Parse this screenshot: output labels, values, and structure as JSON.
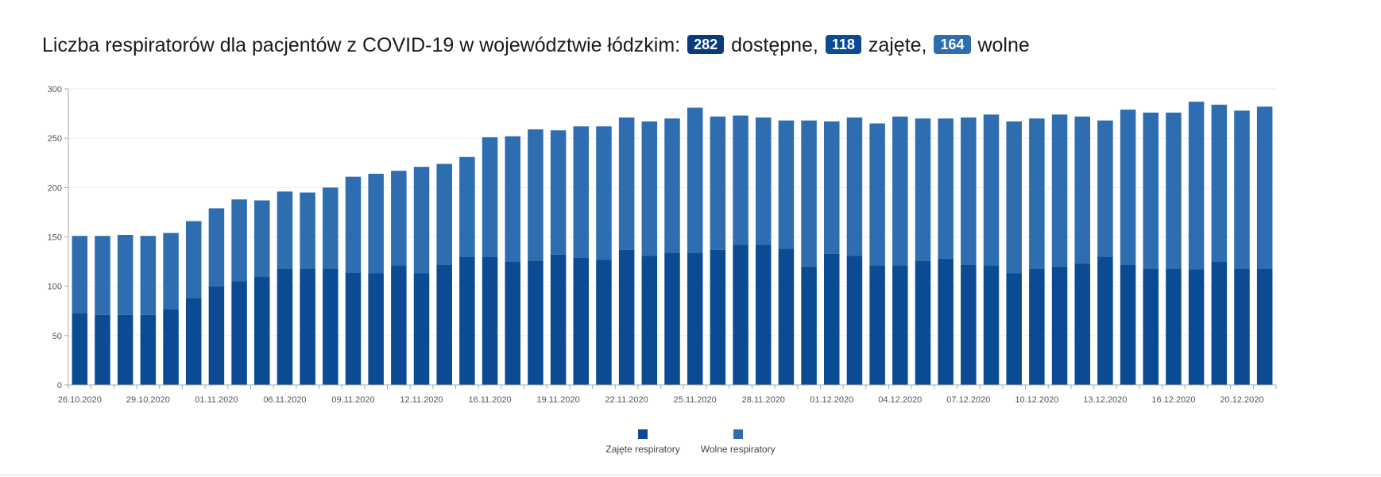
{
  "header": {
    "prefix": "Liczba respiratorów dla pacjentów z COVID-19 w województwie łódzkim:",
    "available_value": "282",
    "available_label": "dostępne,",
    "occupied_value": "118",
    "occupied_label": "zajęte,",
    "free_value": "164",
    "free_label": "wolne"
  },
  "colors": {
    "occupied": "#0a4b94",
    "free": "#2e6db0",
    "grid": "#eeeeee",
    "axis": "#aaaaaa",
    "tick_text": "#555555"
  },
  "chart_data": {
    "type": "bar",
    "stacked": true,
    "ylim": [
      0,
      300
    ],
    "yticks": [
      0,
      50,
      100,
      150,
      200,
      250,
      300
    ],
    "x_tick_labels": [
      "26.10.2020",
      "29.10.2020",
      "01.11.2020",
      "06.11.2020",
      "09.11.2020",
      "12.11.2020",
      "16.11.2020",
      "19.11.2020",
      "22.11.2020",
      "25.11.2020",
      "28.11.2020",
      "01.12.2020",
      "04.12.2020",
      "07.12.2020",
      "10.12.2020",
      "13.12.2020",
      "16.12.2020",
      "20.12.2020"
    ],
    "x_tick_positions": [
      0,
      3,
      6,
      9,
      12,
      15,
      18,
      21,
      24,
      27,
      30,
      33,
      36,
      39,
      42,
      45,
      48,
      51
    ],
    "grid": true,
    "legend_position": "bottom",
    "series": [
      {
        "name": "Zajęte respiratory",
        "values": [
          73,
          71,
          71,
          71,
          77,
          88,
          100,
          105,
          110,
          118,
          118,
          118,
          114,
          113,
          121,
          113,
          122,
          130,
          130,
          125,
          126,
          132,
          129,
          127,
          137,
          131,
          134,
          134,
          137,
          142,
          142,
          138,
          120,
          133,
          131,
          121,
          121,
          126,
          128,
          122,
          121,
          113,
          118,
          120,
          123,
          130,
          122,
          118,
          118,
          117,
          125,
          118,
          118
        ]
      },
      {
        "name": "Wolne respiratory",
        "values": [
          78,
          80,
          81,
          80,
          77,
          78,
          79,
          83,
          77,
          78,
          77,
          82,
          97,
          101,
          96,
          108,
          102,
          101,
          121,
          127,
          133,
          126,
          133,
          135,
          134,
          136,
          136,
          147,
          135,
          131,
          129,
          130,
          148,
          134,
          140,
          144,
          151,
          144,
          142,
          149,
          153,
          154,
          152,
          154,
          149,
          138,
          157,
          158,
          158,
          170,
          159,
          160,
          164
        ]
      }
    ]
  }
}
